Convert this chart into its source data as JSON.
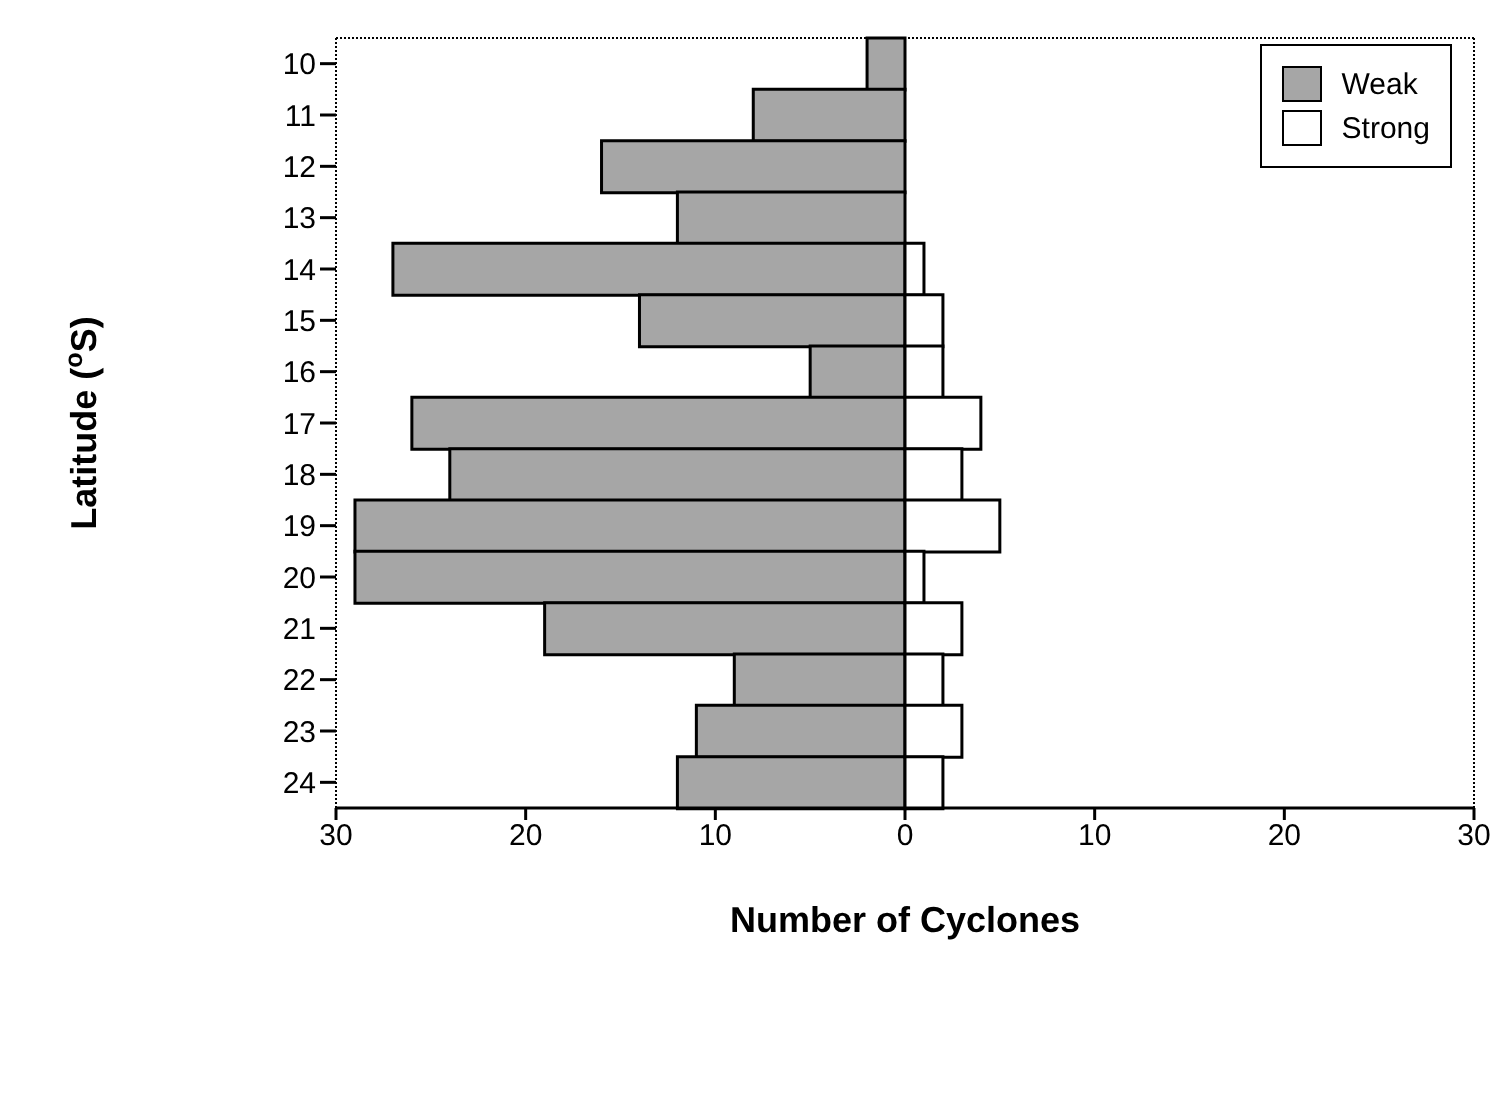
{
  "chart_data": {
    "type": "bar",
    "orientation": "horizontal",
    "stacked": true,
    "xlabel": "Number of Cyclones",
    "ylabel": "Latitude ($^{o}$S)",
    "categories": [
      "10",
      "11",
      "12",
      "13",
      "14",
      "15",
      "16",
      "17",
      "18",
      "19",
      "20",
      "21",
      "22",
      "23",
      "24"
    ],
    "series": [
      {
        "name": "Weak",
        "color": "#a6a6a6",
        "values": [
          -2,
          -8,
          -16,
          -12,
          -27,
          -14,
          -5,
          -26,
          -24,
          -29,
          -29,
          -19,
          -9,
          -11,
          -12
        ]
      },
      {
        "name": "Strong",
        "color": "#ffffff",
        "values": [
          0,
          0,
          0,
          0,
          1,
          2,
          2,
          4,
          3,
          5,
          1,
          3,
          2,
          3,
          2
        ]
      }
    ],
    "xlim": [
      -30,
      30
    ],
    "xticks": [
      {
        "value": -30,
        "label": "30"
      },
      {
        "value": -20,
        "label": "20"
      },
      {
        "value": -10,
        "label": "10"
      },
      0,
      10,
      20,
      30
    ],
    "legend": "top right",
    "grid": false
  }
}
